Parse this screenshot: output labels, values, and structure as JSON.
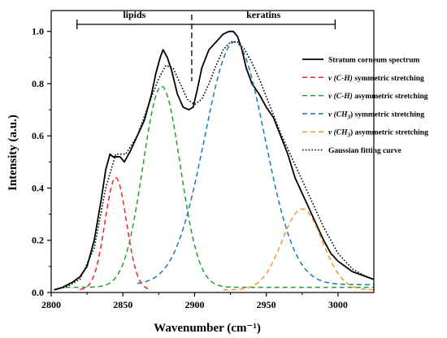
{
  "chart_data": {
    "type": "line",
    "xlabel": "Wavenumber (cm⁻¹)",
    "ylabel": "Intensity (a.u.)",
    "xlim": [
      2800,
      3025
    ],
    "ylim": [
      0,
      1.08
    ],
    "xticks": [
      2800,
      2850,
      2900,
      2950,
      3000
    ],
    "yticks": [
      0.0,
      0.2,
      0.4,
      0.6,
      0.8,
      1.0
    ],
    "xtick_labels": [
      "2800",
      "2850",
      "2900",
      "2950",
      "3000"
    ],
    "ytick_labels": [
      "0.0",
      "0.2",
      "0.4",
      "0.6",
      "0.8",
      "1.0"
    ],
    "legend_position": "top-right",
    "regions": [
      {
        "label": "lipids",
        "x_start": 2818,
        "x_end": 2898
      },
      {
        "label": "keratins",
        "x_start": 2898,
        "x_end": 2998
      }
    ],
    "divider_x": 2898,
    "series": [
      {
        "name": "Stratum corneum spectrum",
        "style": "solid",
        "color": "#000000",
        "x": [
          2802,
          2808,
          2815,
          2820,
          2825,
          2830,
          2835,
          2838,
          2841,
          2843,
          2846,
          2848,
          2851,
          2855,
          2860,
          2865,
          2870,
          2873,
          2876,
          2878,
          2881,
          2884,
          2888,
          2892,
          2896,
          2899,
          2902,
          2905,
          2910,
          2915,
          2920,
          2924,
          2927,
          2930,
          2933,
          2936,
          2940,
          2945,
          2950,
          2955,
          2960,
          2965,
          2970,
          2975,
          2980,
          2985,
          2990,
          2995,
          3000,
          3005,
          3010,
          3015,
          3020,
          3025
        ],
        "y": [
          0.01,
          0.02,
          0.04,
          0.06,
          0.1,
          0.2,
          0.36,
          0.47,
          0.53,
          0.52,
          0.52,
          0.52,
          0.5,
          0.54,
          0.6,
          0.66,
          0.76,
          0.84,
          0.9,
          0.93,
          0.9,
          0.85,
          0.76,
          0.71,
          0.7,
          0.71,
          0.78,
          0.86,
          0.93,
          0.96,
          0.99,
          1.0,
          1.0,
          0.98,
          0.93,
          0.86,
          0.8,
          0.76,
          0.71,
          0.67,
          0.6,
          0.53,
          0.44,
          0.38,
          0.32,
          0.26,
          0.2,
          0.15,
          0.12,
          0.1,
          0.08,
          0.07,
          0.06,
          0.05
        ]
      },
      {
        "name": "ν (C-H) symmetric stretching",
        "style": "dashed",
        "color": "#e8262a",
        "peak": 2845,
        "height": 0.43,
        "sigma": 7.5,
        "baseline": 0.01,
        "x_from": 2820,
        "x_to": 2870
      },
      {
        "name": "ν (C-H) asymmetric stretching",
        "style": "dashed",
        "color": "#1fa32a",
        "peak": 2877,
        "height": 0.77,
        "sigma": 13,
        "baseline": 0.02,
        "x_from": 2810,
        "x_to": 3025
      },
      {
        "name": "ν (CH₃) symmetric stretching",
        "style": "dashed",
        "color": "#1c78b8",
        "peak": 2928,
        "height": 0.93,
        "sigma": 21,
        "baseline": 0.03,
        "x_from": 2860,
        "x_to": 3025
      },
      {
        "name": "ν (CH₃) asymmetric stretching",
        "style": "dashed",
        "color": "#f39632",
        "peak": 2975,
        "height": 0.31,
        "sigma": 14,
        "baseline": 0.01,
        "x_from": 2920,
        "x_to": 3025
      },
      {
        "name": "Gaussian fitting curve",
        "style": "dotted",
        "color": "#000000",
        "x": [
          2802,
          2810,
          2820,
          2830,
          2838,
          2845,
          2852,
          2860,
          2868,
          2875,
          2880,
          2885,
          2890,
          2895,
          2900,
          2905,
          2910,
          2915,
          2920,
          2925,
          2930,
          2935,
          2940,
          2945,
          2950,
          2955,
          2960,
          2965,
          2970,
          2975,
          2980,
          2985,
          2990,
          2995,
          3000,
          3010,
          3020,
          3025
        ],
        "y": [
          0.01,
          0.02,
          0.05,
          0.17,
          0.4,
          0.53,
          0.53,
          0.6,
          0.72,
          0.82,
          0.87,
          0.86,
          0.8,
          0.74,
          0.72,
          0.74,
          0.8,
          0.87,
          0.93,
          0.96,
          0.96,
          0.93,
          0.88,
          0.82,
          0.75,
          0.68,
          0.61,
          0.55,
          0.49,
          0.43,
          0.37,
          0.31,
          0.25,
          0.2,
          0.15,
          0.09,
          0.06,
          0.05
        ]
      }
    ]
  },
  "legend": [
    {
      "prefix": "",
      "sub": "",
      "suffix": "Stratum corneum spectrum"
    },
    {
      "prefix": "ν (C-H)",
      "sub": "",
      "suffix": " symmetric stretching"
    },
    {
      "prefix": "ν (C-H)",
      "sub": "",
      "suffix": " asymmetric stretching"
    },
    {
      "prefix": "ν (CH",
      "sub": "3",
      "suffix": ") symmetric stretching"
    },
    {
      "prefix": "ν (CH",
      "sub": "3",
      "suffix": ") asymmetric stretching"
    },
    {
      "prefix": "",
      "sub": "",
      "suffix": "Gaussian fitting curve"
    }
  ]
}
